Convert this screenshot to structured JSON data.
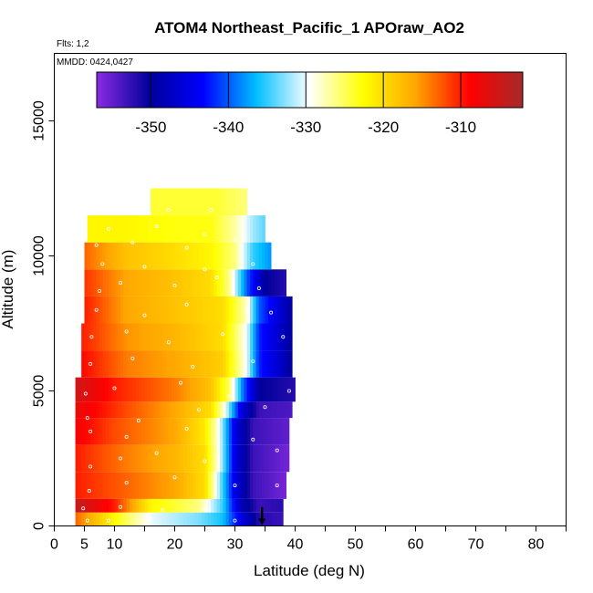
{
  "chart_data": {
    "type": "heatmap",
    "title": "ATOM4 Northeast_Pacific_1 APOraw_AO2",
    "flights_label": "Flts: 1,2",
    "dates_label": "MMDD: 0424,0427",
    "xlabel": "Latitude (deg N)",
    "ylabel": "Altitude (m)",
    "xlim": [
      0,
      85
    ],
    "ylim": [
      0,
      17500
    ],
    "x_ticks": [
      0,
      5,
      10,
      20,
      30,
      40,
      50,
      60,
      70,
      80
    ],
    "x_minor_ticks": [
      15,
      25,
      35,
      45,
      55,
      65,
      75,
      85
    ],
    "y_ticks": [
      0,
      5000,
      10000,
      15000
    ],
    "colorbar": {
      "min": -357,
      "max": -302,
      "ticks": [
        -350,
        -340,
        -330,
        -320,
        -310
      ],
      "tick_labels": [
        "-350",
        "-340",
        "-330",
        "-320",
        "-310"
      ],
      "colors": [
        "#8a2be2",
        "#00009b",
        "#0000ff",
        "#00bfff",
        "#ffffff",
        "#ffff00",
        "#ffa500",
        "#ff0000",
        "#a52a2a"
      ]
    },
    "bands": [
      {
        "alt_min": 0,
        "alt_max": 500,
        "lat_min": 3.5,
        "lat_max": 38,
        "values_by_lat": [
          [
            3.5,
            -313
          ],
          [
            12,
            -325
          ],
          [
            16,
            -330
          ],
          [
            24,
            -333
          ],
          [
            28,
            -336
          ],
          [
            31,
            -345
          ],
          [
            34,
            -352
          ],
          [
            38,
            -353
          ]
        ]
      },
      {
        "alt_min": 500,
        "alt_max": 1000,
        "lat_min": 3.5,
        "lat_max": 38,
        "values_by_lat": [
          [
            3.5,
            -304
          ],
          [
            10,
            -310
          ],
          [
            16,
            -322
          ],
          [
            24,
            -326
          ],
          [
            28,
            -335
          ],
          [
            31,
            -348
          ],
          [
            34,
            -353
          ],
          [
            38,
            -352
          ]
        ]
      },
      {
        "alt_min": 1000,
        "alt_max": 2000,
        "lat_min": 3.5,
        "lat_max": 38.5,
        "values_by_lat": [
          [
            3.5,
            -310
          ],
          [
            12,
            -313
          ],
          [
            20,
            -316
          ],
          [
            25,
            -320
          ],
          [
            27,
            -330
          ],
          [
            30,
            -345
          ],
          [
            33,
            -353
          ],
          [
            38.5,
            -356
          ]
        ]
      },
      {
        "alt_min": 2000,
        "alt_max": 3000,
        "lat_min": 3.5,
        "lat_max": 39,
        "values_by_lat": [
          [
            3.5,
            -310
          ],
          [
            12,
            -314
          ],
          [
            20,
            -317
          ],
          [
            25,
            -320
          ],
          [
            27.5,
            -330
          ],
          [
            30,
            -345
          ],
          [
            33,
            -353
          ],
          [
            39,
            -356
          ]
        ]
      },
      {
        "alt_min": 3000,
        "alt_max": 4000,
        "lat_min": 3.5,
        "lat_max": 39,
        "values_by_lat": [
          [
            3.5,
            -308
          ],
          [
            10,
            -312
          ],
          [
            20,
            -316
          ],
          [
            25,
            -321
          ],
          [
            27.5,
            -330
          ],
          [
            30,
            -345
          ],
          [
            33,
            -353
          ],
          [
            39,
            -355
          ]
        ]
      },
      {
        "alt_min": 4000,
        "alt_max": 4600,
        "lat_min": 3.5,
        "lat_max": 39.5,
        "values_by_lat": [
          [
            3.5,
            -307
          ],
          [
            12,
            -312
          ],
          [
            20,
            -316
          ],
          [
            26,
            -320
          ],
          [
            28.5,
            -330
          ],
          [
            31,
            -345
          ],
          [
            34,
            -353
          ],
          [
            39.5,
            -354
          ]
        ]
      },
      {
        "alt_min": 4600,
        "alt_max": 5500,
        "lat_min": 3.5,
        "lat_max": 40,
        "values_by_lat": [
          [
            3.5,
            -305
          ],
          [
            10,
            -310
          ],
          [
            20,
            -314
          ],
          [
            26,
            -318
          ],
          [
            29,
            -325
          ],
          [
            31.5,
            -340
          ],
          [
            34,
            -350
          ],
          [
            40,
            -352
          ]
        ]
      },
      {
        "alt_min": 5500,
        "alt_max": 6500,
        "lat_min": 4.5,
        "lat_max": 39.5,
        "values_by_lat": [
          [
            4.5,
            -309
          ],
          [
            12,
            -314
          ],
          [
            20,
            -316
          ],
          [
            28,
            -319
          ],
          [
            32,
            -330
          ],
          [
            34,
            -342
          ],
          [
            39.5,
            -350
          ]
        ]
      },
      {
        "alt_min": 6500,
        "alt_max": 7500,
        "lat_min": 4.5,
        "lat_max": 39.5,
        "values_by_lat": [
          [
            4.5,
            -310
          ],
          [
            12,
            -315
          ],
          [
            20,
            -317
          ],
          [
            28,
            -320
          ],
          [
            32,
            -330
          ],
          [
            34,
            -342
          ],
          [
            39.5,
            -350
          ]
        ]
      },
      {
        "alt_min": 7500,
        "alt_max": 8500,
        "lat_min": 5,
        "lat_max": 39.5,
        "values_by_lat": [
          [
            5,
            -310
          ],
          [
            12,
            -316
          ],
          [
            20,
            -318
          ],
          [
            28,
            -320
          ],
          [
            32,
            -328
          ],
          [
            34,
            -340
          ],
          [
            39.5,
            -350
          ]
        ]
      },
      {
        "alt_min": 8500,
        "alt_max": 9500,
        "lat_min": 5,
        "lat_max": 38.5,
        "values_by_lat": [
          [
            5,
            -311
          ],
          [
            12,
            -316
          ],
          [
            20,
            -318
          ],
          [
            26,
            -320
          ],
          [
            29,
            -326
          ],
          [
            32,
            -340
          ],
          [
            35,
            -350
          ],
          [
            38.5,
            -352
          ]
        ]
      },
      {
        "alt_min": 9500,
        "alt_max": 10500,
        "lat_min": 5,
        "lat_max": 36,
        "values_by_lat": [
          [
            5,
            -313
          ],
          [
            12,
            -318
          ],
          [
            20,
            -320
          ],
          [
            26,
            -322
          ],
          [
            30,
            -326
          ],
          [
            33,
            -335
          ],
          [
            36,
            -338
          ]
        ]
      },
      {
        "alt_min": 10500,
        "alt_max": 11500,
        "lat_min": 5.5,
        "lat_max": 35,
        "values_by_lat": [
          [
            5.5,
            -322
          ],
          [
            12,
            -322
          ],
          [
            20,
            -323
          ],
          [
            26,
            -323
          ],
          [
            30,
            -327
          ],
          [
            33,
            -332
          ],
          [
            35,
            -334
          ]
        ]
      },
      {
        "alt_min": 11500,
        "alt_max": 12500,
        "lat_min": 16,
        "lat_max": 32,
        "values_by_lat": [
          [
            16,
            -324
          ],
          [
            22,
            -324
          ],
          [
            27,
            -324
          ],
          [
            32,
            -326
          ]
        ]
      }
    ],
    "obs_points": [
      [
        5.5,
        200
      ],
      [
        9,
        200
      ],
      [
        16,
        250
      ],
      [
        30,
        200
      ],
      [
        4.8,
        650
      ],
      [
        11,
        700
      ],
      [
        18,
        600
      ],
      [
        25,
        620
      ],
      [
        5.8,
        1300
      ],
      [
        12,
        1600
      ],
      [
        20,
        1800
      ],
      [
        30,
        1500
      ],
      [
        37,
        1500
      ],
      [
        6,
        2200
      ],
      [
        11,
        2500
      ],
      [
        17,
        2700
      ],
      [
        25,
        2400
      ],
      [
        37,
        2800
      ],
      [
        6,
        3500
      ],
      [
        12,
        3300
      ],
      [
        22,
        3600
      ],
      [
        33,
        3200
      ],
      [
        5.5,
        4000
      ],
      [
        14,
        3900
      ],
      [
        24,
        4300
      ],
      [
        35,
        4400
      ],
      [
        5.2,
        4900
      ],
      [
        10,
        5100
      ],
      [
        21,
        5300
      ],
      [
        29,
        4800
      ],
      [
        39,
        5000
      ],
      [
        6,
        6000
      ],
      [
        13,
        6200
      ],
      [
        23,
        5900
      ],
      [
        33,
        6100
      ],
      [
        6.2,
        7000
      ],
      [
        12,
        7200
      ],
      [
        19,
        6800
      ],
      [
        28,
        7100
      ],
      [
        38,
        7000
      ],
      [
        7,
        8000
      ],
      [
        15,
        7800
      ],
      [
        22,
        8200
      ],
      [
        32,
        8000
      ],
      [
        36,
        7900
      ],
      [
        7.5,
        8700
      ],
      [
        11,
        9000
      ],
      [
        20,
        8900
      ],
      [
        27,
        9200
      ],
      [
        34,
        8800
      ],
      [
        8,
        9700
      ],
      [
        15,
        9600
      ],
      [
        25,
        9500
      ],
      [
        33,
        9700
      ],
      [
        7,
        10400
      ],
      [
        13,
        10500
      ],
      [
        22,
        10300
      ],
      [
        30,
        10600
      ],
      [
        9,
        11000
      ],
      [
        17,
        11100
      ],
      [
        25,
        10800
      ],
      [
        19,
        11700
      ],
      [
        26,
        11700
      ]
    ],
    "marker": {
      "lat": 34.5,
      "alt_base": 0,
      "alt_top": 700
    }
  }
}
